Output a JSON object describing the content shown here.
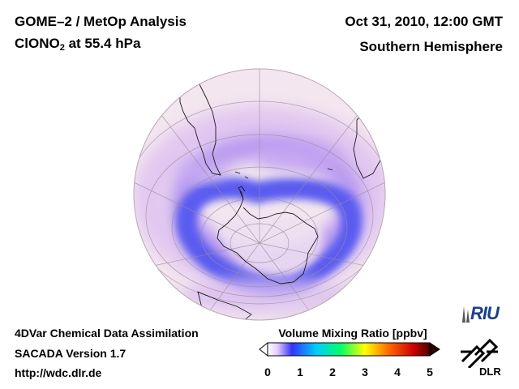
{
  "header": {
    "title_line1": "GOME–2 / MetOp Analysis",
    "title_line2_prefix": "ClONO",
    "title_line2_sub": "2",
    "title_line2_suffix": " at 55.4 hPa",
    "date": "Oct 31, 2010, 12:00 GMT",
    "region": "Southern Hemisphere"
  },
  "footer": {
    "line1": "4DVar Chemical Data Assimilation",
    "line2": "SACADA Version 1.7",
    "line3": "http://wdc.dlr.de"
  },
  "colorbar": {
    "title": "Volume Mixing Ratio [ppbv]",
    "ticks": [
      "0",
      "1",
      "2",
      "3",
      "4",
      "5"
    ],
    "min": 0,
    "max": 5,
    "colors": [
      "#ffffff",
      "#e6ccff",
      "#3333ff",
      "#00ccff",
      "#00ff66",
      "#ffff00",
      "#ff6600",
      "#cc0000",
      "#4d0000"
    ]
  },
  "logos": {
    "riu": "RIU",
    "dlr": "DLR"
  },
  "map": {
    "projection": "orthographic",
    "center": "South Pole",
    "colors": {
      "background": "#f4e6ef",
      "low": "#f9f0f5",
      "mid": "#c9a8f0",
      "high": "#6b5ff0",
      "peak": "#4a52f2"
    }
  }
}
